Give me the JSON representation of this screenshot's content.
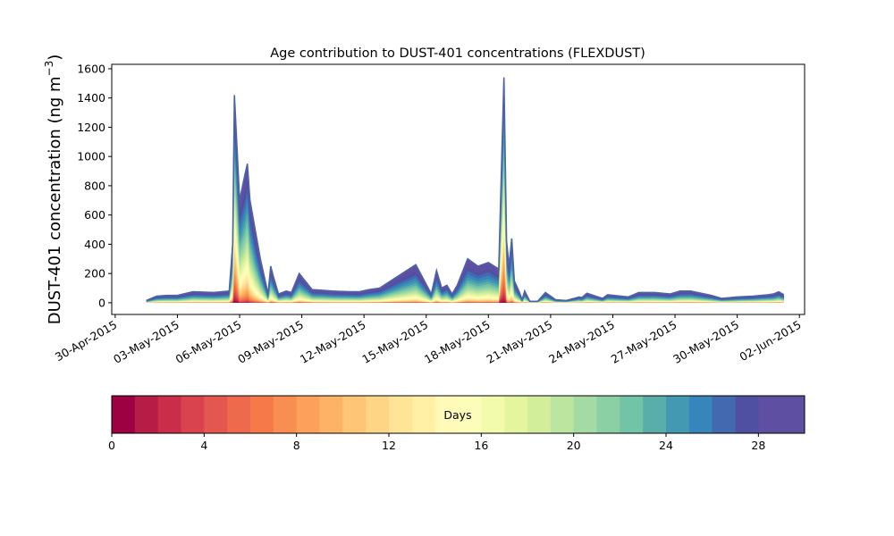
{
  "chart_data": {
    "type": "area",
    "title": "Age contribution to DUST-401 concentrations (FLEXDUST)",
    "ylabel": "DUST-401 concentration (ng m",
    "ylabel_sup": "−3",
    "ylabel_close": ")",
    "xlabel": "",
    "ylim": [
      -80,
      1630
    ],
    "xlim": [
      "2015-04-29T20:00",
      "2015-06-02T06:00"
    ],
    "y_ticks": [
      0,
      200,
      400,
      600,
      800,
      1000,
      1200,
      1400,
      1600
    ],
    "x_ticks": [
      "30-Apr-2015",
      "03-May-2015",
      "06-May-2015",
      "09-May-2015",
      "12-May-2015",
      "15-May-2015",
      "18-May-2015",
      "21-May-2015",
      "24-May-2015",
      "27-May-2015",
      "30-May-2015",
      "02-Jun-2015"
    ],
    "x_tick_dates": [
      "2015-04-30",
      "2015-05-03",
      "2015-05-06",
      "2015-05-09",
      "2015-05-12",
      "2015-05-15",
      "2015-05-18",
      "2015-05-21",
      "2015-05-24",
      "2015-05-27",
      "2015-05-30",
      "2015-06-02"
    ],
    "grid": false,
    "stacked": true,
    "series_count": 30,
    "total": {
      "x": [
        "2015-05-01T12:00",
        "2015-05-02T00:00",
        "2015-05-02T12:00",
        "2015-05-03T00:00",
        "2015-05-03T18:00",
        "2015-05-04T18:00",
        "2015-05-05T12:00",
        "2015-05-05T16:00",
        "2015-05-05T18:00",
        "2015-05-06T00:00",
        "2015-05-06T06:00",
        "2015-05-06T09:00",
        "2015-05-06T12:00",
        "2015-05-06T18:00",
        "2015-05-07T00:00",
        "2015-05-07T09:00",
        "2015-05-07T12:00",
        "2015-05-07T15:00",
        "2015-05-07T21:00",
        "2015-05-08T06:00",
        "2015-05-08T12:00",
        "2015-05-08T21:00",
        "2015-05-09T12:00",
        "2015-05-10T12:00",
        "2015-05-11T06:00",
        "2015-05-11T18:00",
        "2015-05-12T06:00",
        "2015-05-12T18:00",
        "2015-05-14T12:00",
        "2015-05-15T06:00",
        "2015-05-15T12:00",
        "2015-05-15T18:00",
        "2015-05-16T00:00",
        "2015-05-16T06:00",
        "2015-05-16T12:00",
        "2015-05-17T00:00",
        "2015-05-17T12:00",
        "2015-05-18T00:00",
        "2015-05-18T12:00",
        "2015-05-18T18:00",
        "2015-05-18T21:00",
        "2015-05-19T00:00",
        "2015-05-19T03:00",
        "2015-05-19T06:00",
        "2015-05-19T12:00",
        "2015-05-19T15:00",
        "2015-05-19T18:00",
        "2015-05-20T00:00",
        "2015-05-20T09:00",
        "2015-05-20T18:00",
        "2015-05-21T06:00",
        "2015-05-21T18:00",
        "2015-05-22T09:00",
        "2015-05-22T12:00",
        "2015-05-22T18:00",
        "2015-05-23T12:00",
        "2015-05-23T18:00",
        "2015-05-24T18:00",
        "2015-05-25T06:00",
        "2015-05-26T00:00",
        "2015-05-26T18:00",
        "2015-05-27T06:00",
        "2015-05-27T18:00",
        "2015-05-28T18:00",
        "2015-05-29T06:00",
        "2015-05-30T00:00",
        "2015-05-30T18:00",
        "2015-05-31T12:00",
        "2015-05-31T18:00",
        "2015-06-01T00:00",
        "2015-06-01T06:00"
      ],
      "y": [
        15,
        45,
        50,
        50,
        75,
        70,
        80,
        400,
        1420,
        700,
        870,
        950,
        700,
        500,
        300,
        60,
        250,
        180,
        60,
        80,
        70,
        200,
        90,
        80,
        75,
        75,
        90,
        100,
        260,
        60,
        220,
        100,
        120,
        60,
        120,
        300,
        250,
        275,
        230,
        1540,
        420,
        250,
        440,
        150,
        70,
        20,
        80,
        10,
        10,
        70,
        20,
        15,
        40,
        35,
        65,
        30,
        55,
        40,
        70,
        70,
        60,
        80,
        80,
        50,
        30,
        40,
        45,
        55,
        60,
        75,
        55
      ]
    },
    "colorbar": {
      "label": "Days",
      "min": 0,
      "max": 30,
      "ticks": [
        0,
        4,
        8,
        12,
        16,
        20,
        24,
        28
      ],
      "colors": [
        "#9e0142",
        "#b51d47",
        "#c92d4a",
        "#d8434e",
        "#e45750",
        "#ee6a4c",
        "#f67a49",
        "#f98e52",
        "#fca05c",
        "#fdb366",
        "#fdc575",
        "#fed585",
        "#fee496",
        "#fff0a6",
        "#fffab7",
        "#fbfdb8",
        "#f2faab",
        "#e5f59f",
        "#d3ee9b",
        "#bce59f",
        "#a4daa4",
        "#8bd0a4",
        "#71c4a5",
        "#5aaeaa",
        "#4399b1",
        "#3685bb",
        "#436ab0",
        "#5050a2",
        "#5e4fa2",
        "#5e4fa2"
      ]
    }
  }
}
